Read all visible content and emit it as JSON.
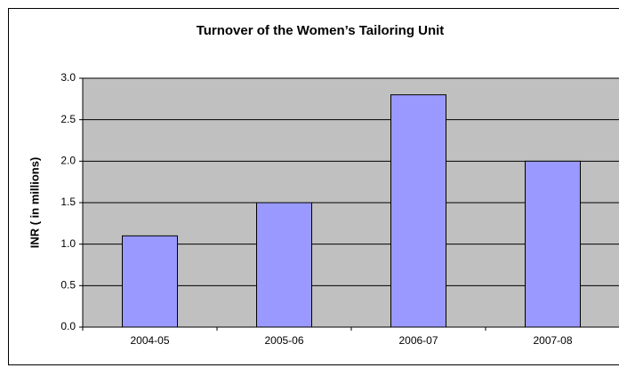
{
  "chart_data": {
    "type": "bar",
    "title": "Turnover of the Women’s Tailoring Unit",
    "y_label": "INR ( in millions)",
    "categories": [
      "2004-05",
      "2005-06",
      "2006-07",
      "2007-08"
    ],
    "values": [
      1.1,
      1.5,
      2.8,
      2.0
    ],
    "color": "#9999ff",
    "ylim": [
      0,
      3
    ],
    "yticks": [
      {
        "value": 0,
        "label": "0.0"
      },
      {
        "value": 0.5,
        "label": "0.5"
      },
      {
        "value": 1,
        "label": "1.0"
      },
      {
        "value": 1.5,
        "label": "1.5"
      },
      {
        "value": 2,
        "label": "2.0"
      },
      {
        "value": 2.5,
        "label": "2.5"
      },
      {
        "value": 3,
        "label": "3.0"
      }
    ],
    "grid": true
  }
}
